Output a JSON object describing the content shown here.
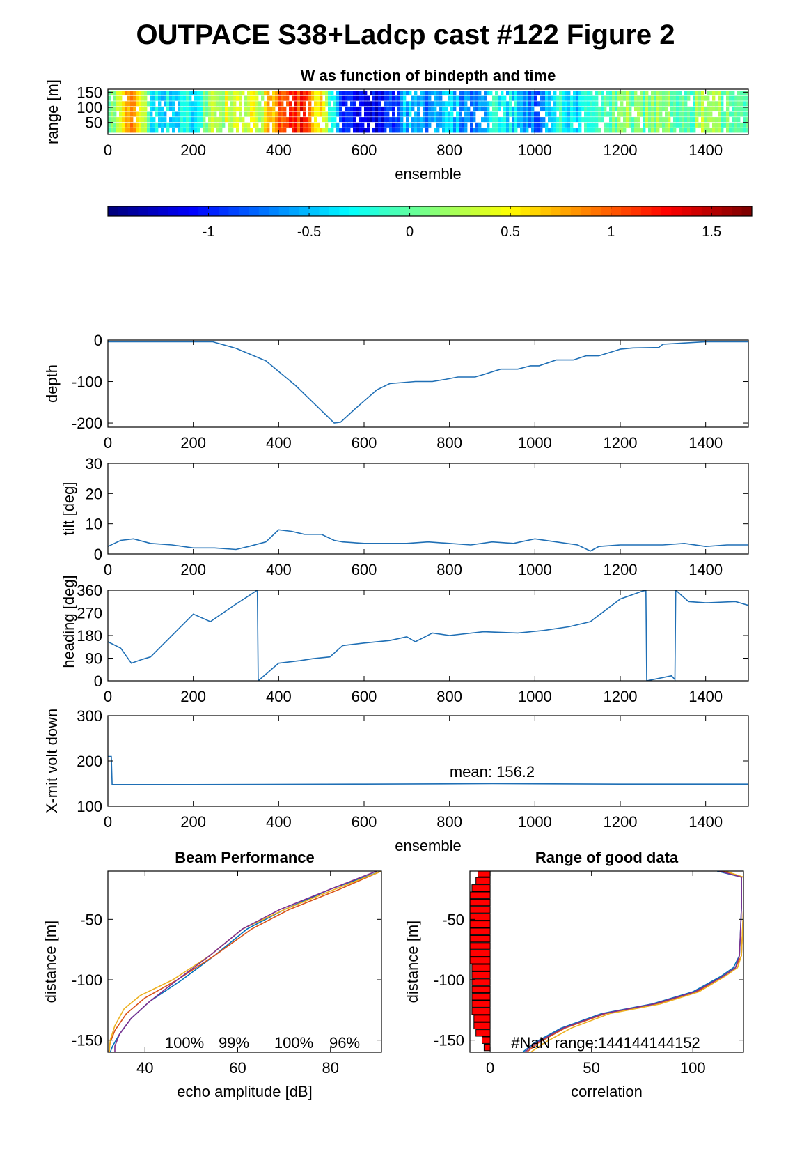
{
  "figure_title": "OUTPACE S38+Ladcp cast #122 Figure 2",
  "colors": {
    "line": "#1f6fb5",
    "axis": "#000000",
    "bar": "#ff0000",
    "profiles": [
      "#0072bd",
      "#d95319",
      "#edb120",
      "#7e2f8e"
    ]
  },
  "chart_data": [
    {
      "id": "w_image",
      "type": "heatmap",
      "title": "W as function of bindepth and time",
      "xlabel": "ensemble",
      "ylabel": "range [m]",
      "xlim": [
        0,
        1500
      ],
      "ylim": [
        10,
        160
      ],
      "xticks": [
        0,
        200,
        400,
        600,
        800,
        1000,
        1200,
        1400
      ],
      "yticks": [
        50,
        100,
        150
      ],
      "colormap": "jet",
      "clim": [
        -1.5,
        1.7
      ],
      "colorbar_ticks": [
        -1,
        -0.5,
        0,
        0.5,
        1,
        1.5
      ],
      "column_means": [
        {
          "x": 0,
          "w": -0.1
        },
        {
          "x": 50,
          "w": 0.9
        },
        {
          "x": 100,
          "w": -0.3
        },
        {
          "x": 150,
          "w": -0.4
        },
        {
          "x": 200,
          "w": -0.2
        },
        {
          "x": 250,
          "w": 0.2
        },
        {
          "x": 300,
          "w": 0.4
        },
        {
          "x": 350,
          "w": 0.3
        },
        {
          "x": 400,
          "w": 1.0
        },
        {
          "x": 450,
          "w": 1.2
        },
        {
          "x": 500,
          "w": 0.5
        },
        {
          "x": 550,
          "w": -1.0
        },
        {
          "x": 600,
          "w": -1.3
        },
        {
          "x": 650,
          "w": -1.0
        },
        {
          "x": 700,
          "w": -0.5
        },
        {
          "x": 750,
          "w": -0.7
        },
        {
          "x": 800,
          "w": -0.4
        },
        {
          "x": 850,
          "w": -0.8
        },
        {
          "x": 900,
          "w": -0.3
        },
        {
          "x": 950,
          "w": -0.4
        },
        {
          "x": 1000,
          "w": -0.9
        },
        {
          "x": 1050,
          "w": -0.2
        },
        {
          "x": 1100,
          "w": -0.4
        },
        {
          "x": 1150,
          "w": -0.1
        },
        {
          "x": 1200,
          "w": 0.1
        },
        {
          "x": 1250,
          "w": 0.0
        },
        {
          "x": 1300,
          "w": 0.2
        },
        {
          "x": 1350,
          "w": -0.1
        },
        {
          "x": 1400,
          "w": 0.2
        },
        {
          "x": 1450,
          "w": 0.0
        },
        {
          "x": 1500,
          "w": 0.0
        }
      ]
    },
    {
      "id": "depth",
      "type": "line",
      "title": "",
      "xlabel": "",
      "ylabel": "depth",
      "xlim": [
        0,
        1500
      ],
      "ylim": [
        -210,
        0
      ],
      "xticks": [
        0,
        200,
        400,
        600,
        800,
        1000,
        1200,
        1400
      ],
      "yticks": [
        -200,
        -100,
        0
      ],
      "series": [
        {
          "x": [
            0,
            245,
            300,
            370,
            440,
            500,
            530,
            545,
            580,
            630,
            660,
            720,
            760,
            790,
            820,
            860,
            880,
            920,
            960,
            990,
            1010,
            1050,
            1090,
            1120,
            1150,
            1200,
            1230,
            1290,
            1300,
            1400,
            1500
          ],
          "y": [
            -4,
            -4,
            -20,
            -50,
            -110,
            -170,
            -200,
            -198,
            -165,
            -120,
            -105,
            -100,
            -100,
            -95,
            -89,
            -89,
            -83,
            -70,
            -70,
            -62,
            -62,
            -48,
            -48,
            -38,
            -38,
            -22,
            -19,
            -18,
            -10,
            -4,
            -4
          ]
        }
      ]
    },
    {
      "id": "tilt",
      "type": "line",
      "title": "",
      "xlabel": "",
      "ylabel": "tilt [deg]",
      "xlim": [
        0,
        1500
      ],
      "ylim": [
        0,
        30
      ],
      "xticks": [
        0,
        200,
        400,
        600,
        800,
        1000,
        1200,
        1400
      ],
      "yticks": [
        0,
        10,
        20,
        30
      ],
      "series": [
        {
          "x": [
            0,
            30,
            60,
            100,
            150,
            200,
            250,
            300,
            330,
            370,
            400,
            430,
            460,
            500,
            530,
            550,
            600,
            650,
            700,
            750,
            800,
            850,
            900,
            950,
            1000,
            1050,
            1100,
            1130,
            1150,
            1200,
            1250,
            1300,
            1350,
            1400,
            1450,
            1500
          ],
          "y": [
            2.5,
            4.5,
            5,
            3.5,
            3,
            2,
            2,
            1.5,
            2.5,
            4,
            8,
            7.5,
            6.5,
            6.5,
            4.5,
            4,
            3.5,
            3.5,
            3.5,
            4,
            3.5,
            3,
            4,
            3.5,
            5,
            4,
            3,
            1,
            2.5,
            3,
            3,
            3,
            3.5,
            2.5,
            3,
            3
          ]
        }
      ]
    },
    {
      "id": "heading",
      "type": "line",
      "title": "",
      "xlabel": "",
      "ylabel": "heading [deg]",
      "xlim": [
        0,
        1500
      ],
      "ylim": [
        0,
        360
      ],
      "xticks": [
        0,
        200,
        400,
        600,
        800,
        1000,
        1200,
        1400
      ],
      "yticks": [
        0,
        90,
        180,
        270,
        360
      ],
      "series": [
        {
          "x": [
            0,
            30,
            55,
            80,
            100,
            150,
            200,
            240,
            270,
            300,
            350,
            352,
            400,
            450,
            480,
            520,
            550,
            600,
            660,
            700,
            720,
            760,
            800,
            880,
            960,
            1020,
            1080,
            1130,
            1200,
            1250,
            1260,
            1262,
            1320,
            1328,
            1330,
            1360,
            1400,
            1470,
            1500
          ],
          "y": [
            155,
            130,
            70,
            85,
            95,
            180,
            265,
            235,
            270,
            305,
            360,
            0,
            70,
            80,
            88,
            95,
            140,
            150,
            160,
            175,
            155,
            190,
            180,
            195,
            190,
            200,
            215,
            235,
            325,
            355,
            360,
            0,
            20,
            5,
            360,
            315,
            310,
            315,
            300
          ]
        }
      ]
    },
    {
      "id": "xmit",
      "type": "line",
      "title": "",
      "xlabel": "ensemble",
      "ylabel": "X-mit volt down",
      "xlim": [
        0,
        1500
      ],
      "ylim": [
        100,
        300
      ],
      "xticks": [
        0,
        200,
        400,
        600,
        800,
        1000,
        1200,
        1400
      ],
      "yticks": [
        100,
        200,
        300
      ],
      "annotation": "mean: 156.2",
      "series": [
        {
          "x": [
            0,
            8,
            10,
            200,
            600,
            900,
            1200,
            1500
          ],
          "y": [
            210,
            210,
            148,
            148,
            149,
            150,
            149,
            149
          ]
        }
      ]
    },
    {
      "id": "beam",
      "type": "line",
      "title": "Beam Performance",
      "xlabel": "echo amplitude [dB]",
      "ylabel": "distance [m]",
      "xlim": [
        32,
        91
      ],
      "ylim": [
        -160,
        -10
      ],
      "xticks": [
        40,
        60,
        80
      ],
      "yticks": [
        -150,
        -100,
        -50
      ],
      "annotations": [
        "100%",
        "99%",
        "100%",
        "96%"
      ],
      "series": [
        {
          "name": "",
          "x": [
            91,
            80,
            70,
            62,
            55,
            48,
            41,
            37,
            34.5,
            33,
            32.5
          ],
          "y": [
            -10,
            -25,
            -42,
            -58,
            -80,
            -100,
            -118,
            -132,
            -145,
            -155,
            -160
          ]
        },
        {
          "name": "",
          "x": [
            91,
            82,
            71,
            63,
            55,
            47,
            40,
            36,
            33.5,
            32.5,
            32.2
          ],
          "y": [
            -10,
            -25,
            -42,
            -58,
            -80,
            -100,
            -115,
            -128,
            -142,
            -152,
            -160
          ]
        },
        {
          "name": "",
          "x": [
            91,
            81,
            70,
            61,
            54,
            46,
            39,
            35.5,
            33.5,
            32.5,
            32.3
          ],
          "y": [
            -10,
            -25,
            -42,
            -58,
            -80,
            -100,
            -113,
            -124,
            -138,
            -150,
            -160
          ]
        },
        {
          "name": "",
          "x": [
            90,
            80,
            69,
            61,
            54,
            47,
            41,
            37,
            34.5,
            33.5,
            33.5
          ],
          "y": [
            -10,
            -25,
            -42,
            -58,
            -80,
            -100,
            -118,
            -132,
            -145,
            -155,
            -160
          ]
        }
      ]
    },
    {
      "id": "range_good",
      "type": "bar",
      "title": "Range of good data",
      "xlabel": "correlation",
      "ylabel": "distance [m]",
      "xlim": [
        -10,
        125
      ],
      "ylim": [
        -160,
        -10
      ],
      "xticks": [
        0,
        50,
        100
      ],
      "yticks": [
        -150,
        -100,
        -50
      ],
      "annotation": "#NaN range:144144144152",
      "bars": {
        "depths": [
          -12,
          -18,
          -24,
          -30,
          -36,
          -42,
          -48,
          -54,
          -60,
          -66,
          -72,
          -78,
          -84,
          -90,
          -96,
          -102,
          -108,
          -114,
          -120,
          -126,
          -132,
          -138,
          -144,
          -150,
          -156
        ],
        "lengths": [
          6,
          7,
          9,
          10,
          10,
          10,
          10,
          10,
          10,
          10,
          10,
          10,
          10,
          9,
          9,
          9,
          9,
          9,
          9,
          9,
          8,
          8,
          7,
          4,
          3
        ]
      },
      "series": [
        {
          "name": "",
          "x": [
            112,
            124,
            124,
            123,
            120,
            114,
            100,
            80,
            55,
            35,
            22,
            16
          ],
          "y": [
            -10,
            -15,
            -40,
            -80,
            -90,
            -97,
            -110,
            -120,
            -128,
            -140,
            -152,
            -160
          ]
        },
        {
          "name": "",
          "x": [
            114,
            125,
            125,
            124,
            121,
            115,
            102,
            82,
            57,
            37,
            24,
            18
          ],
          "y": [
            -10,
            -15,
            -40,
            -80,
            -90,
            -97,
            -110,
            -120,
            -128,
            -140,
            -152,
            -160
          ]
        },
        {
          "name": "",
          "x": [
            116,
            125,
            125,
            124,
            122,
            116,
            103,
            84,
            59,
            40,
            27,
            20
          ],
          "y": [
            -10,
            -15,
            -40,
            -80,
            -90,
            -97,
            -110,
            -120,
            -128,
            -140,
            -152,
            -160
          ]
        },
        {
          "name": "",
          "x": [
            113,
            124,
            124,
            123,
            121,
            115,
            101,
            81,
            56,
            36,
            23,
            17
          ],
          "y": [
            -10,
            -15,
            -40,
            -80,
            -90,
            -97,
            -110,
            -120,
            -128,
            -140,
            -152,
            -160
          ]
        }
      ]
    }
  ]
}
